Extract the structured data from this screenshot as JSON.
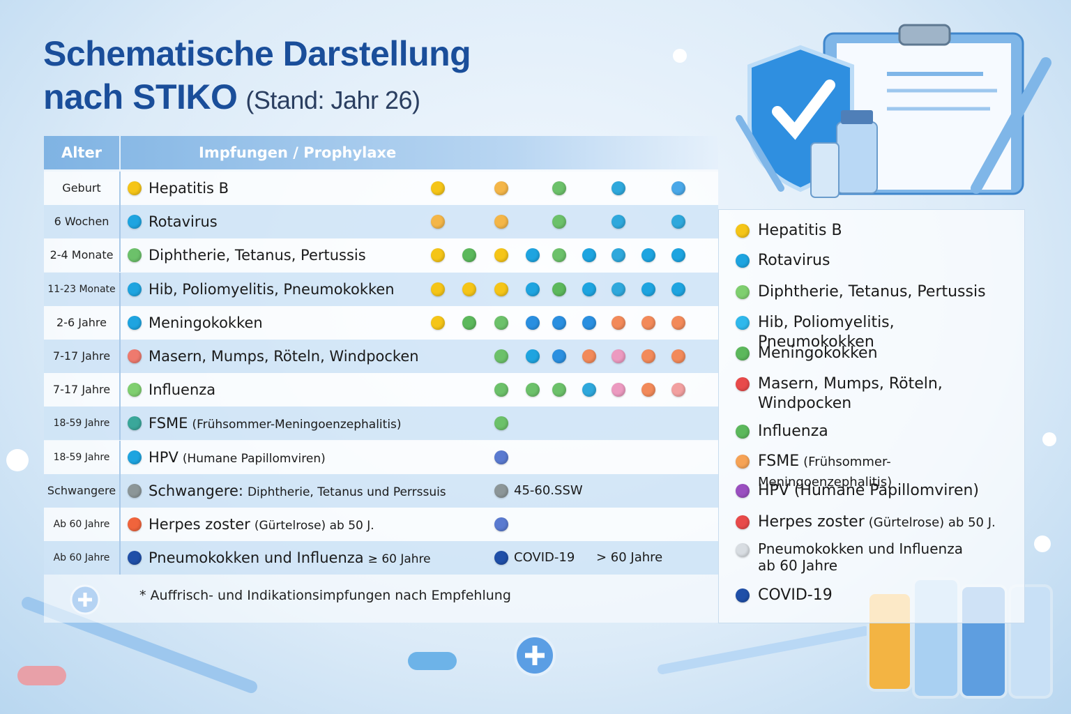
{
  "header": {
    "title_line1": "Schematische Darstellung",
    "title_line2": "nach STIKO",
    "subtitle": "(Stand: Jahr 26)"
  },
  "table": {
    "columns": [
      "Alter",
      "Impfungen / Prophylaxe"
    ],
    "rows": [
      {
        "age": "Geburt",
        "color": "#f5c518",
        "name": "Hepatitis B",
        "dots": [
          "#f5c518",
          null,
          "#f4b648",
          null,
          "#6cc16a",
          null,
          "#2fa8dc",
          null,
          "#4aa8e8"
        ]
      },
      {
        "age": "6 Wochen",
        "color": "#1ea4e0",
        "name": "Rotavirus",
        "dots": [
          "#f4b648",
          null,
          "#f4b648",
          null,
          "#6cc16a",
          null,
          "#2fa8dc",
          null,
          "#2fa8dc"
        ]
      },
      {
        "age": "2-4 Monate",
        "color": "#6cc16a",
        "name": "Diphtherie, Tetanus, Pertussis",
        "dots": [
          "#f5c518",
          "#5cb85c",
          "#f5c518",
          "#1ea4e0",
          "#6cc16a",
          "#1ea4e0",
          "#2fa8dc",
          "#1ea4e0",
          "#1ea4e0"
        ]
      },
      {
        "age": "11-23 Monate",
        "color": "#1ea4e0",
        "name": "Hib, Poliomyelitis, Pneumokokken",
        "dots": [
          "#f5c518",
          "#f5c518",
          "#f5c518",
          "#1ea4e0",
          "#5cb85c",
          "#1ea4e0",
          "#2fa8dc",
          "#1ea4e0",
          "#1ea4e0"
        ]
      },
      {
        "age": "2-6 Jahre",
        "color": "#1ea4e0",
        "name": "Meningokokken",
        "dots": [
          "#f5c518",
          "#5cb85c",
          "#6cc16a",
          "#2a8fe0",
          "#2a8fe0",
          "#2a8fe0",
          "#f28a5a",
          "#f28a5a",
          "#f28a5a"
        ]
      },
      {
        "age": "7-17 Jahre",
        "color": "#ee7a6e",
        "name": "Masern, Mumps, Röteln, Windpocken",
        "dots": [
          null,
          null,
          "#6cc16a",
          "#1ea4e0",
          "#2a8fe0",
          "#f28a5a",
          "#ec9ac0",
          "#f28a5a",
          "#f28a5a"
        ]
      },
      {
        "age": "7-17 Jahre",
        "color": "#7fcf6f",
        "name": "Influenza",
        "dots": [
          null,
          null,
          "#6cc16a",
          "#6cc16a",
          "#6cc16a",
          "#2fa8dc",
          "#ec9ac0",
          "#f28a5a",
          "#f2a0a0"
        ]
      },
      {
        "age": "18-59 Jahre",
        "color": "#3aa79a",
        "name": "FSME",
        "detail": "(Frühsommer-Meningoenzephalitis)",
        "dots": [
          null,
          null,
          "#6cc16a"
        ]
      },
      {
        "age": "18-59 Jahre",
        "color": "#1ea4e0",
        "name": "HPV",
        "detail": "(Humane Papillomviren)",
        "dots": [
          null,
          null,
          "#5a7ad0"
        ]
      },
      {
        "age": "Schwangere",
        "color": "#8c9698",
        "name": "Schwangere:",
        "detail": "Diphtherie, Tetanus und Perrssuis",
        "dots": [
          null,
          null,
          "#8c9698"
        ],
        "note": "45-60.SSW"
      },
      {
        "age": "Ab 60 Jahre",
        "color": "#f0643c",
        "name": "Herpes zoster",
        "detail": "(Gürtelrose)  ab 50 J.",
        "dots": [
          null,
          null,
          "#5a7ad0"
        ]
      },
      {
        "age": "Ab 60 Jahre",
        "color": "#1f4fa8",
        "name": "Pneumokokken und Influenza",
        "detail": "≥ 60 Jahre",
        "dots": [
          null,
          null,
          "#1f4fa8"
        ],
        "note": "COVID-19",
        "note2": "> 60 Jahre"
      }
    ]
  },
  "footnote": "* Auffrisch- und Indikationsimpfungen nach Empfehlung",
  "legend": [
    {
      "color": "#f5c518",
      "text": "Hepatitis B"
    },
    {
      "color": "#1ea4e0",
      "text": "Rotavirus"
    },
    {
      "color": "#7fcf6f",
      "text": "Diphtherie, Tetanus, Pertussis"
    },
    {
      "color": "#2fb8ec",
      "text": "Hib, Poliomyelitis, Pneumokokken"
    },
    {
      "color": "#5cb85c",
      "text": "Meningokokken"
    },
    {
      "color": "#e84a4a",
      "text": "Masern, Mumps, Röteln, Windpocken"
    },
    {
      "color": "#5cb85c",
      "text": "Influenza"
    },
    {
      "color": "#f6a356",
      "text": "FSME",
      "detail": "(Frühsommer-Meningoenzephalitis)"
    },
    {
      "color": "#9a4fc0",
      "text": "HPV (Humane Papillomviren)"
    },
    {
      "color": "#e84a4a",
      "text": "Herpes zoster",
      "detail": "(Gürtelrose)   ab 50 J."
    },
    {
      "color": "#d8dde2",
      "text": "Pneumokokken und Influenza ab 60 Jahre"
    },
    {
      "color": "#1f4fa8",
      "text": "COVID-19"
    }
  ]
}
